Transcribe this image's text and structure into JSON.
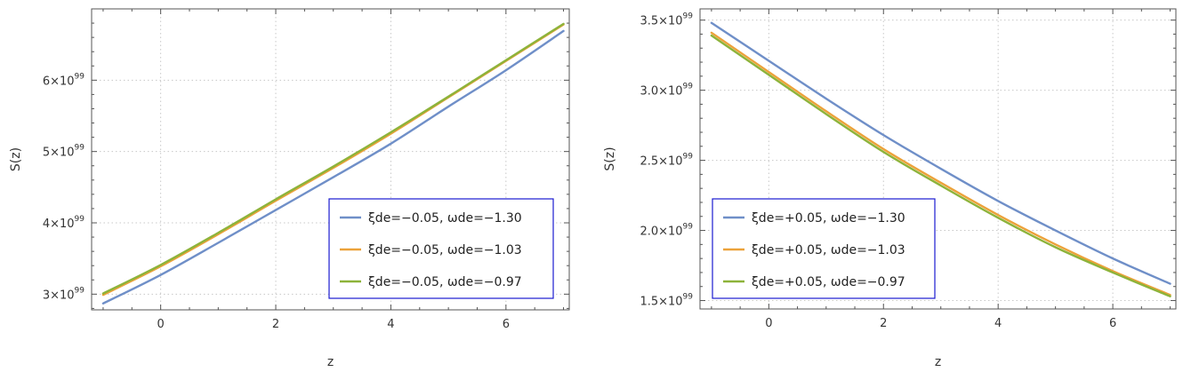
{
  "chart_data": [
    {
      "type": "line",
      "title": "",
      "xlabel": "z",
      "ylabel": "S(z)",
      "xlim": [
        -1.2,
        7.1
      ],
      "ylim": [
        2.78,
        7.0
      ],
      "y_scale_label": "10",
      "y_exponent": "99",
      "grid": true,
      "legend_position": "bottom-right",
      "x_ticks": [
        {
          "value": 0,
          "label": "0"
        },
        {
          "value": 2,
          "label": "2"
        },
        {
          "value": 4,
          "label": "4"
        },
        {
          "value": 6,
          "label": "6"
        }
      ],
      "y_ticks": [
        {
          "value": 3,
          "label": "3×10"
        },
        {
          "value": 4,
          "label": "4×10"
        },
        {
          "value": 5,
          "label": "5×10"
        },
        {
          "value": 6,
          "label": "6×10"
        }
      ],
      "x": [
        -1,
        0,
        1,
        2,
        3,
        4,
        5,
        6,
        7
      ],
      "series": [
        {
          "name": "ξde=−0.05, ωde=−1.30",
          "color": "#6f8fc8",
          "values": [
            2.87,
            3.27,
            3.72,
            4.18,
            4.64,
            5.11,
            5.63,
            6.14,
            6.69
          ]
        },
        {
          "name": "ξde=−0.05, ωde=−1.03",
          "color": "#eca23a",
          "values": [
            2.99,
            3.39,
            3.84,
            4.31,
            4.77,
            5.25,
            5.76,
            6.27,
            6.78
          ]
        },
        {
          "name": "ξde=−0.05, ωde=−0.97",
          "color": "#8db33a",
          "values": [
            3.01,
            3.41,
            3.86,
            4.33,
            4.79,
            5.27,
            5.77,
            6.28,
            6.79
          ]
        }
      ]
    },
    {
      "type": "line",
      "title": "",
      "xlabel": "z",
      "ylabel": "S(z)",
      "xlim": [
        -1.2,
        7.1
      ],
      "ylim": [
        1.44,
        3.58
      ],
      "y_scale_label": "10",
      "y_exponent": "99",
      "grid": true,
      "legend_position": "bottom-left",
      "x_ticks": [
        {
          "value": 0,
          "label": "0"
        },
        {
          "value": 2,
          "label": "2"
        },
        {
          "value": 4,
          "label": "4"
        },
        {
          "value": 6,
          "label": "6"
        }
      ],
      "y_ticks": [
        {
          "value": 1.5,
          "label": "1.5×10"
        },
        {
          "value": 2.0,
          "label": "2.0×10"
        },
        {
          "value": 2.5,
          "label": "2.5×10"
        },
        {
          "value": 3.0,
          "label": "3.0×10"
        },
        {
          "value": 3.5,
          "label": "3.5×10"
        }
      ],
      "x": [
        -1,
        0,
        1,
        2,
        3,
        4,
        5,
        6,
        7
      ],
      "series": [
        {
          "name": "ξde=+0.05, ωde=−1.30",
          "color": "#6f8fc8",
          "values": [
            3.48,
            3.21,
            2.94,
            2.68,
            2.44,
            2.21,
            2.0,
            1.8,
            1.62
          ]
        },
        {
          "name": "ξde=+0.05, ωde=−1.03",
          "color": "#eca23a",
          "values": [
            3.41,
            3.13,
            2.85,
            2.58,
            2.34,
            2.11,
            1.9,
            1.71,
            1.54
          ]
        },
        {
          "name": "ξde=+0.05, ωde=−0.97",
          "color": "#8db33a",
          "values": [
            3.39,
            3.11,
            2.83,
            2.56,
            2.32,
            2.09,
            1.88,
            1.7,
            1.53
          ]
        }
      ]
    }
  ]
}
